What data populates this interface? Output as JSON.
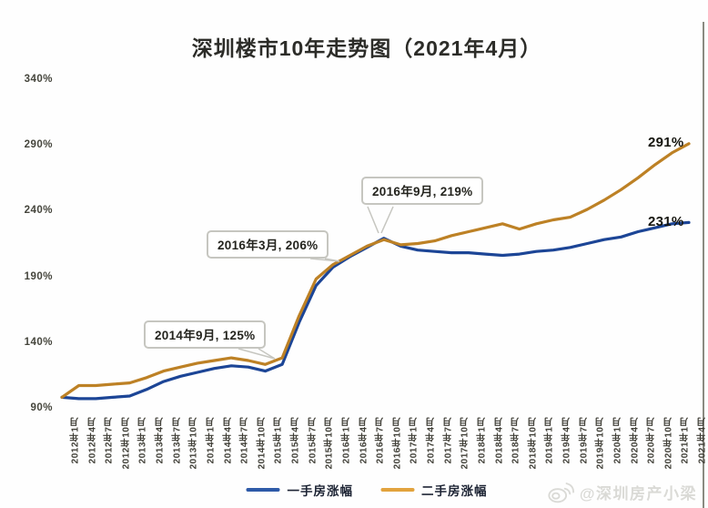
{
  "title": "深圳楼市10年走势图（2021年4月）",
  "chart_data": {
    "type": "line",
    "title": "深圳楼市10年走势图（2021年4月）",
    "xlabel": "",
    "ylabel": "",
    "ylim": [
      90,
      340
    ],
    "grid": false,
    "legend_position": "bottom",
    "yticks": [
      "340%",
      "290%",
      "240%",
      "190%",
      "140%",
      "90%"
    ],
    "categories": [
      "2012年1月",
      "2012年4月",
      "2012年7月",
      "2012年10月",
      "2013年1月",
      "2013年4月",
      "2013年7月",
      "2013年10月",
      "2014年1月",
      "2014年4月",
      "2014年7月",
      "2014年10月",
      "2015年1月",
      "2015年4月",
      "2015年7月",
      "2015年10月",
      "2016年1月",
      "2016年4月",
      "2016年7月",
      "2016年10月",
      "2017年1月",
      "2017年4月",
      "2017年7月",
      "2017年10月",
      "2018年1月",
      "2018年4月",
      "2018年7月",
      "2018年10月",
      "2019年1月",
      "2019年4月",
      "2019年7月",
      "2019年10月",
      "2020年1月",
      "2020年4月",
      "2020年7月",
      "2020年10月",
      "2021年1月",
      "2021年4月"
    ],
    "series": [
      {
        "name": "一手房涨幅",
        "color": "#1c4596",
        "values": [
          98,
          97,
          97,
          98,
          99,
          104,
          110,
          114,
          117,
          120,
          122,
          121,
          118,
          123,
          155,
          183,
          197,
          205,
          212,
          219,
          213,
          210,
          209,
          208,
          208,
          207,
          206,
          207,
          209,
          210,
          212,
          215,
          218,
          220,
          224,
          227,
          230,
          231
        ]
      },
      {
        "name": "二手房涨幅",
        "color": "#bd8125",
        "values": [
          98,
          107,
          107,
          108,
          109,
          113,
          118,
          121,
          124,
          126,
          128,
          126,
          123,
          128,
          160,
          188,
          199,
          206,
          213,
          218,
          214,
          215,
          217,
          221,
          224,
          227,
          230,
          226,
          230,
          233,
          235,
          241,
          248,
          256,
          265,
          275,
          284,
          291
        ]
      }
    ],
    "annotations": [
      {
        "text": "2014年9月, 125%"
      },
      {
        "text": "2016年3月, 206%"
      },
      {
        "text": "2016年9月, 219%"
      }
    ],
    "end_labels": [
      {
        "series": "二手房涨幅",
        "text": "291%"
      },
      {
        "series": "一手房涨幅",
        "text": "231%"
      }
    ]
  },
  "legend": {
    "items": [
      {
        "label": "一手房涨幅",
        "color": "#2e5aa8"
      },
      {
        "label": "二手房涨幅",
        "color": "#e2a33d"
      }
    ]
  },
  "watermark": {
    "icon": "weibo-icon",
    "text": "@深圳房产小梁"
  },
  "colors": {
    "first_hand_line": "#1c4596",
    "second_hand_line": "#bd8125",
    "annotation_border": "#c6c6c0",
    "watermark": "#dadad6",
    "edge_line": "#8a8a81"
  }
}
